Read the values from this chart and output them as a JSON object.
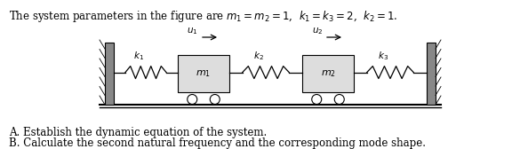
{
  "background_color": "#ffffff",
  "label_A": "A. Establish the dynamic equation of the system.",
  "label_B": "B. Calculate the second natural frequency and the corresponding mode shape.",
  "label_fontsize": 8.5,
  "wall_color": "#888888",
  "mass_color": "#dddddd",
  "line_color": "#000000"
}
